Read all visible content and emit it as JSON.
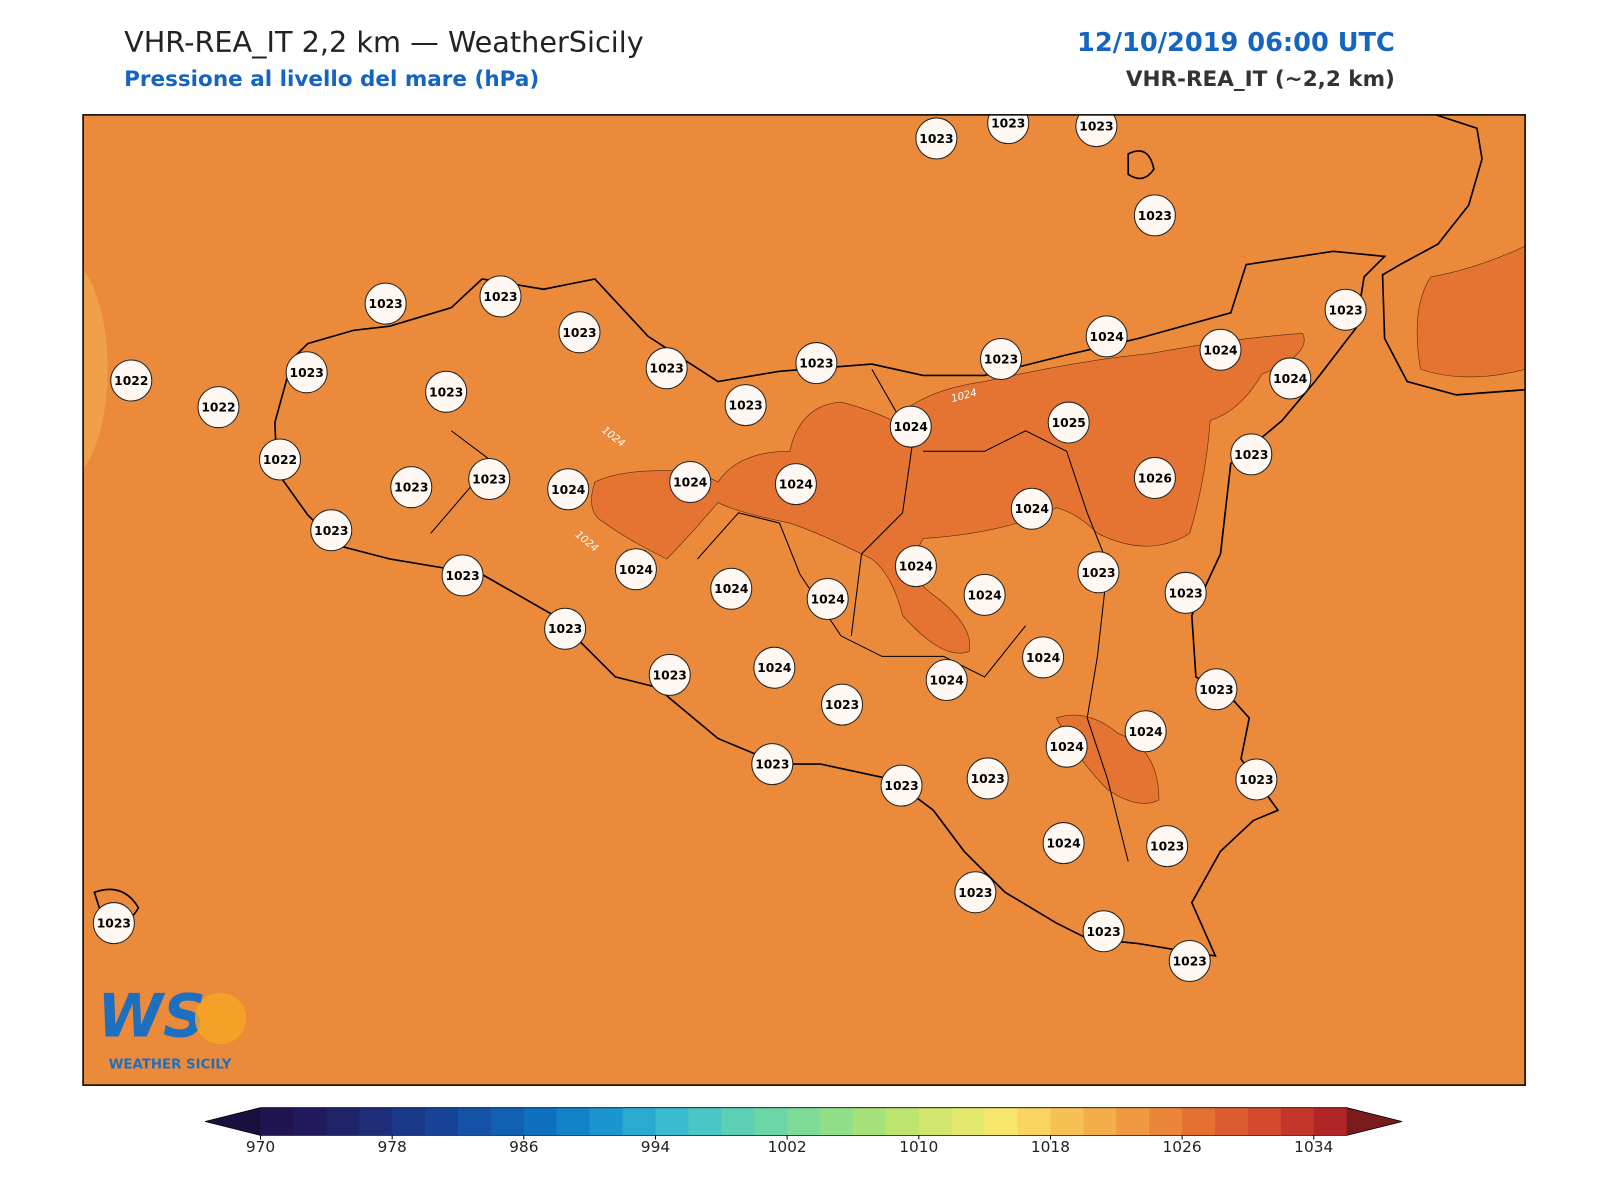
{
  "header": {
    "title": "VHR-REA_IT 2,2 km — WeatherSicily",
    "subtitle": "Pressione al livello del mare (hPa)",
    "datetime": "12/10/2019 06:00 UTC",
    "model": "VHR-REA_IT (~2,2 km)"
  },
  "map": {
    "background_color": "#ec8a3b",
    "high_color": "#e57432",
    "stations": [
      1023,
      1023,
      1023,
      1023,
      1023,
      1023,
      1023,
      1023,
      1022,
      1023,
      1023,
      1023,
      1023,
      1023,
      1024,
      1024,
      1024,
      1022,
      1023,
      1024,
      1025,
      1023,
      1022,
      1023,
      1023,
      1024,
      1024,
      1024,
      1026,
      1024,
      1023,
      1023,
      1024,
      1024,
      1023,
      1023,
      1024,
      1024,
      1024,
      1023,
      1024,
      1023,
      1024,
      1024,
      1023,
      1023,
      1024,
      1024,
      1023,
      1023,
      1023,
      1023,
      1024,
      1023,
      1023,
      1023,
      1023,
      1023
    ],
    "contour_labels": [
      1024,
      1024,
      1024
    ]
  },
  "logo": {
    "mark": "WS",
    "name": "WEATHER SICILY"
  },
  "colorbar": {
    "clim": [
      970,
      1036
    ],
    "ticks": [
      970,
      978,
      986,
      994,
      1002,
      1010,
      1018,
      1026,
      1034
    ],
    "under_color": "#1b0f3f",
    "over_color": "#7a1c1c",
    "colors": [
      "#221450",
      "#211a5c",
      "#1f2468",
      "#1d2d78",
      "#1a3888",
      "#174496",
      "#1452a6",
      "#1260b2",
      "#0f70c0",
      "#1383c8",
      "#1d96cf",
      "#2aa9d2",
      "#3bbbcf",
      "#4cc6c4",
      "#5ccfb4",
      "#6dd6a6",
      "#7fdb98",
      "#93de88",
      "#a7e17a",
      "#bde46e",
      "#d0e66c",
      "#e3e86e",
      "#f6e66e",
      "#fad462",
      "#f7c156",
      "#f3ad4b",
      "#ef9a42",
      "#ea853a",
      "#e47034",
      "#dc5c2f",
      "#d2492c",
      "#c43629",
      "#b22526"
    ]
  }
}
